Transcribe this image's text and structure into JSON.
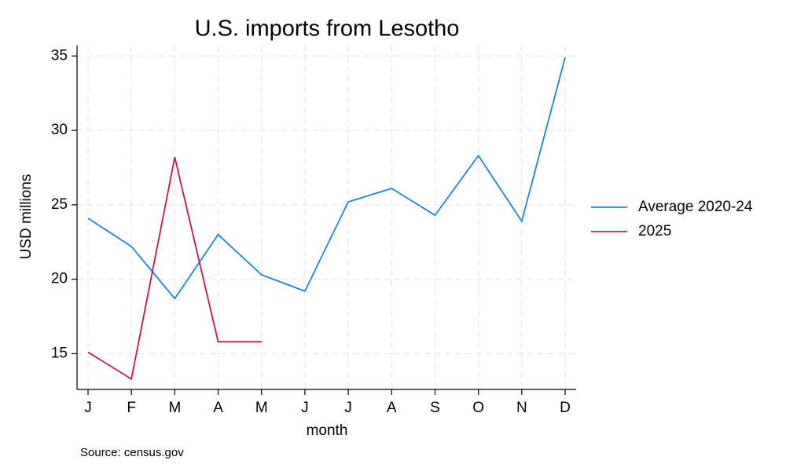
{
  "chart_data": {
    "type": "line",
    "title": "U.S. imports from Lesotho",
    "x_label": "month",
    "y_label": "USD millions",
    "note": "Source: census.gov",
    "categories": [
      "J",
      "F",
      "M",
      "A",
      "M",
      "J",
      "J",
      "A",
      "S",
      "O",
      "N",
      "D"
    ],
    "series": [
      {
        "name": "Average 2020-24",
        "color": "#1a86d6",
        "values": [
          24.1,
          22.2,
          18.7,
          23.0,
          20.3,
          19.2,
          25.2,
          26.1,
          24.3,
          28.3,
          23.9,
          34.9
        ]
      },
      {
        "name": "2025",
        "color": "#c8134f",
        "values": [
          15.1,
          13.3,
          28.2,
          15.8,
          15.8,
          null,
          null,
          null,
          null,
          null,
          null,
          null
        ]
      }
    ],
    "ylim": [
      12.6,
      35.7
    ],
    "yticks": [
      15,
      20,
      25,
      30,
      35
    ],
    "grid": true,
    "legend": "right"
  }
}
